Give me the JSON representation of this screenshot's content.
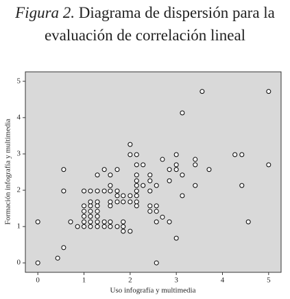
{
  "chart_data": {
    "type": "scatter",
    "figure_label": "Figura 2.",
    "title": "Diagrama de dispersión para la evaluación de correlación lineal",
    "x_label": "Uso infografía y multimedia",
    "y_label": "Formación infografía y multimedia",
    "xlim": [
      -0.27,
      5.27
    ],
    "ylim": [
      -0.26,
      5.26
    ],
    "xticks": [
      0,
      1,
      2,
      3,
      4,
      5
    ],
    "yticks": [
      0,
      1,
      2,
      3,
      4,
      5
    ],
    "background": "#d9d9d9",
    "marker_color": "#000000",
    "x": [
      0,
      0,
      0.43,
      0.56,
      0.56,
      0.56,
      0.71,
      0.86,
      1,
      1,
      1,
      1,
      1,
      1,
      1.14,
      1.14,
      1.14,
      1.14,
      1.14,
      1.14,
      1.14,
      1.29,
      1.29,
      1.29,
      1.29,
      1.29,
      1.29,
      1.29,
      1.29,
      1.44,
      1.44,
      1.44,
      1.44,
      1.57,
      1.57,
      1.57,
      1.57,
      1.57,
      1.57,
      1.57,
      1.72,
      1.72,
      1.72,
      1.72,
      1.72,
      1.85,
      1.85,
      1.85,
      1.85,
      1.85,
      2,
      2,
      2,
      2,
      2,
      2.14,
      2.14,
      2.14,
      2.14,
      2.14,
      2.14,
      2.14,
      2.14,
      2.14,
      2.28,
      2.28,
      2.43,
      2.43,
      2.43,
      2.43,
      2.43,
      2.57,
      2.57,
      2.57,
      2.57,
      2.57,
      2.7,
      2.7,
      2.85,
      2.85,
      2.85,
      3,
      3,
      3,
      3,
      3.13,
      3.13,
      3.13,
      3.41,
      3.41,
      3.41,
      3.56,
      3.71,
      4.27,
      4.42,
      4.42,
      4.56,
      5,
      5
    ],
    "y": [
      1.13,
      0,
      0.13,
      0.42,
      2.57,
      1.98,
      1.13,
      1.0,
      1.98,
      1.57,
      1.42,
      1.28,
      1.13,
      1.0,
      1.98,
      1.68,
      1.57,
      1.42,
      1.28,
      1.13,
      1.0,
      2.42,
      1.98,
      1.68,
      1.57,
      1.42,
      1.28,
      1.13,
      1.0,
      2.57,
      1.98,
      1.13,
      1.0,
      2.42,
      2.13,
      1.98,
      1.68,
      1.57,
      1.13,
      1.0,
      2.57,
      1.98,
      1.85,
      1.68,
      1.0,
      1.85,
      1.68,
      1.13,
      1.0,
      0.87,
      3.26,
      2.98,
      1.85,
      1.68,
      0.87,
      2.98,
      2.7,
      2.42,
      2.26,
      2.13,
      1.98,
      1.85,
      1.68,
      1.57,
      2.7,
      2.13,
      2.42,
      2.26,
      1.98,
      1.57,
      1.42,
      2.13,
      1.57,
      1.42,
      1.13,
      0,
      2.85,
      1.26,
      2.57,
      2.26,
      1.13,
      2.98,
      2.7,
      2.57,
      0.68,
      2.42,
      4.13,
      1.85,
      2.85,
      2.7,
      2.13,
      4.72,
      2.57,
      2.98,
      2.98,
      2.13,
      1.13,
      4.72,
      2.7
    ]
  }
}
